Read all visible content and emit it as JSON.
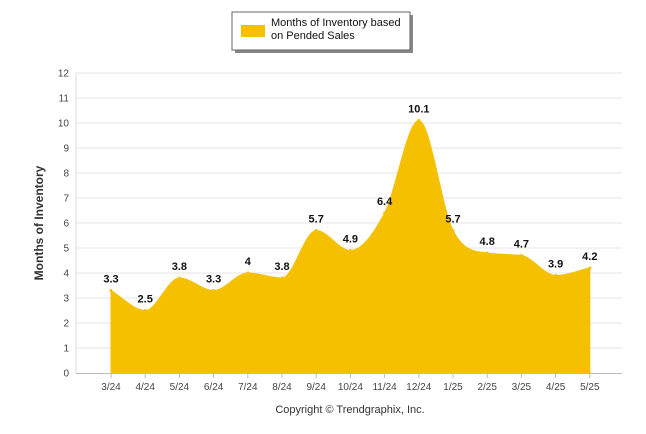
{
  "chart_data": {
    "type": "area",
    "categories": [
      "3/24",
      "4/24",
      "5/24",
      "6/24",
      "7/24",
      "8/24",
      "9/24",
      "10/24",
      "11/24",
      "12/24",
      "1/25",
      "2/25",
      "3/25",
      "4/25",
      "5/25"
    ],
    "series": [
      {
        "name": "Months of Inventory based on Pended Sales",
        "values": [
          3.3,
          2.5,
          3.8,
          3.3,
          4,
          3.8,
          5.7,
          4.9,
          6.4,
          10.1,
          5.7,
          4.8,
          4.7,
          3.9,
          4.2
        ]
      }
    ],
    "data_labels": [
      "3.3",
      "2.5",
      "3.8",
      "3.3",
      "4",
      "3.8",
      "5.7",
      "4.9",
      "6.4",
      "10.1",
      "5.7",
      "4.8",
      "4.7",
      "3.9",
      "4.2"
    ],
    "legend": {
      "line1": "Months of Inventory based",
      "line2": "on Pended Sales",
      "position": "top-center"
    },
    "ylabel": "Months of Inventory",
    "xlabel": "",
    "ylim": [
      0,
      12
    ],
    "yticks": [
      "0",
      "1",
      "2",
      "3",
      "4",
      "5",
      "6",
      "7",
      "8",
      "9",
      "10",
      "11",
      "12"
    ],
    "grid": true,
    "credit": "Copyright © Trendgraphix, Inc.",
    "colors": {
      "fill": "#F5C000",
      "grid": "#E4E4E4",
      "axis": "#BBBBBB"
    }
  }
}
